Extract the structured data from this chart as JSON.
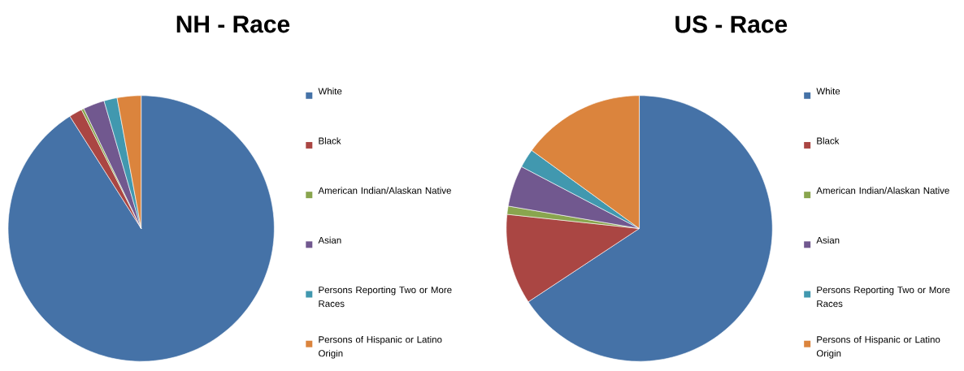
{
  "chart_data": [
    {
      "type": "pie",
      "title": "NH - Race",
      "legend": "right",
      "categories": [
        "White",
        "Black",
        "American Indian/Alaskan Native",
        "Asian",
        "Persons Reporting Two or More Races",
        "Persons of Hispanic or Latino Origin"
      ],
      "values": [
        91.0,
        1.6,
        0.3,
        2.6,
        1.6,
        2.9
      ],
      "colors": [
        "#4572a7",
        "#aa4643",
        "#89a54e",
        "#71588f",
        "#4198af",
        "#db843d"
      ]
    },
    {
      "type": "pie",
      "title": "US - Race",
      "legend": "right",
      "categories": [
        "White",
        "Black",
        "American Indian/Alaskan Native",
        "Asian",
        "Persons Reporting Two or More Races",
        "Persons of Hispanic or Latino Origin"
      ],
      "values": [
        65.7,
        11.0,
        1.0,
        5.0,
        2.3,
        15.0
      ],
      "colors": [
        "#4572a7",
        "#aa4643",
        "#89a54e",
        "#71588f",
        "#4198af",
        "#db843d"
      ]
    }
  ]
}
